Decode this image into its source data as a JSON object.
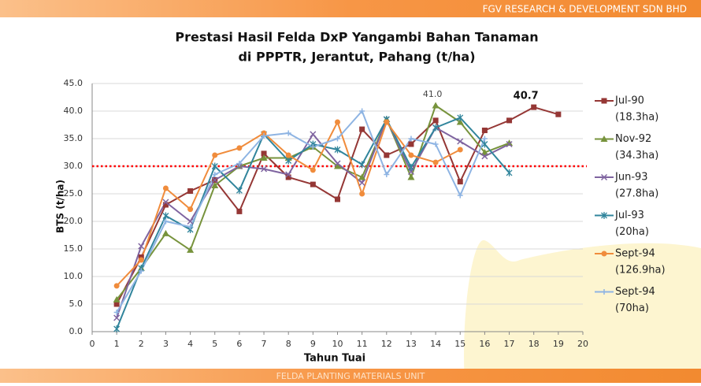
{
  "header": "FGV RESEARCH & DEVELOPMENT SDN BHD",
  "footer": "FELDA PLANTING MATERIALS UNIT",
  "chart_data": {
    "type": "line",
    "title": [
      "Prestasi Hasil Felda DxP Yangambi Bahan Tanaman",
      "di PPPTR, Jerantut, Pahang (t/ha)"
    ],
    "xlabel": "Tahun Tuai",
    "ylabel": "BTS (t/ha)",
    "x": [
      1,
      2,
      3,
      4,
      5,
      6,
      7,
      8,
      9,
      10,
      11,
      12,
      13,
      14,
      15,
      16,
      17,
      18,
      19
    ],
    "xlim": [
      0,
      20
    ],
    "xticks": [
      0,
      1,
      2,
      3,
      4,
      5,
      6,
      7,
      8,
      9,
      10,
      11,
      12,
      13,
      14,
      15,
      16,
      17,
      18,
      19,
      20
    ],
    "ylim": [
      0,
      45
    ],
    "yticks": [
      {
        "value": 0,
        "label": "0.0"
      },
      {
        "value": 5,
        "label": "5.0"
      },
      {
        "value": 10,
        "label": "10.0"
      },
      {
        "value": 15,
        "label": "15.0"
      },
      {
        "value": 20,
        "label": "20.0"
      },
      {
        "value": 25,
        "label": "25.0"
      },
      {
        "value": 30,
        "label": "30.0"
      },
      {
        "value": 35,
        "label": "35.0"
      },
      {
        "value": 40,
        "label": "40.0"
      },
      {
        "value": 45,
        "label": "45.0"
      }
    ],
    "grid": true,
    "reference_line": 30,
    "reference_color": "#ff0000",
    "series": [
      {
        "name": "Jul-90",
        "area": "(18.3ha)",
        "color": "#953735",
        "marker": "square",
        "label_bold": true,
        "values": [
          5.0,
          13.5,
          23.0,
          25.5,
          27.5,
          21.8,
          32.3,
          28.0,
          26.7,
          24.0,
          36.7,
          32.0,
          34.0,
          38.3,
          27.2,
          36.5,
          38.3,
          40.7,
          39.4
        ],
        "value_labels": [
          null,
          null,
          null,
          null,
          null,
          null,
          null,
          null,
          null,
          null,
          null,
          null,
          null,
          null,
          null,
          null,
          null,
          "40.7",
          null
        ]
      },
      {
        "name": "Nov-92",
        "area": "(34.3ha)",
        "color": "#77933c",
        "marker": "triangle",
        "label_bold": false,
        "values": [
          5.8,
          11.5,
          17.8,
          14.8,
          26.5,
          30.0,
          31.5,
          31.5,
          33.5,
          30.0,
          28.0,
          38.5,
          28.0,
          41.0,
          38.0,
          32.5,
          34.2,
          null,
          null
        ],
        "value_labels": [
          null,
          null,
          null,
          null,
          null,
          null,
          null,
          null,
          null,
          null,
          null,
          null,
          null,
          "41.0",
          null,
          null,
          null,
          null,
          null
        ]
      },
      {
        "name": "Jun-93",
        "area": "(27.8ha)",
        "color": "#7f64a0",
        "marker": "x",
        "values": [
          2.5,
          15.5,
          23.5,
          20.0,
          27.5,
          30.0,
          29.5,
          28.5,
          35.8,
          30.5,
          27.0,
          38.5,
          29.0,
          37.0,
          34.5,
          31.8,
          34.0,
          null,
          null
        ]
      },
      {
        "name": "Jul-93",
        "area": "(20ha)",
        "color": "#31859c",
        "marker": "asterisk",
        "values": [
          0.5,
          11.5,
          21.0,
          18.5,
          30.0,
          25.6,
          35.8,
          31.0,
          34.0,
          33.0,
          30.3,
          38.5,
          29.8,
          37.0,
          38.8,
          34.0,
          28.8,
          null,
          null
        ]
      },
      {
        "name": "Sept-94",
        "area": "(126.9ha)",
        "color": "#f08c3c",
        "marker": "circle",
        "values": [
          8.3,
          13.0,
          26.0,
          22.2,
          32.0,
          33.3,
          36.0,
          32.0,
          29.3,
          38.0,
          25.0,
          38.0,
          32.0,
          30.7,
          33.0,
          null,
          null,
          null,
          null
        ]
      },
      {
        "name": "Sept-94",
        "area": "(70ha)",
        "color": "#8eb4e3",
        "marker": "plus",
        "values": [
          3.5,
          11.0,
          20.0,
          19.0,
          28.5,
          30.5,
          35.5,
          36.0,
          33.5,
          35.0,
          40.0,
          28.5,
          35.0,
          34.0,
          24.7,
          35.0,
          null,
          null,
          null
        ]
      }
    ]
  }
}
